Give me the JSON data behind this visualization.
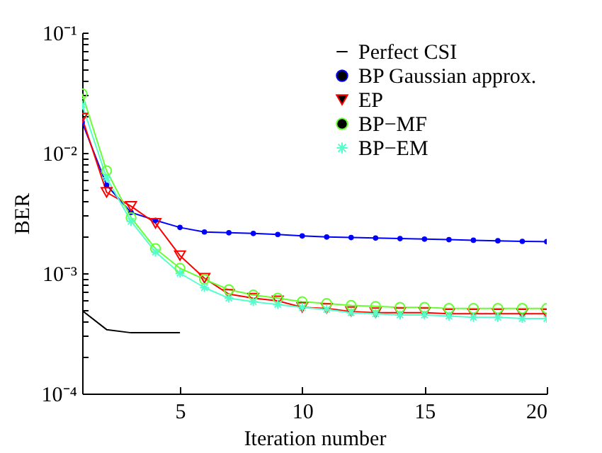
{
  "chart_data": {
    "type": "line",
    "xlabel": "Iteration number",
    "ylabel": "BER",
    "x": [
      1,
      2,
      3,
      4,
      5,
      6,
      7,
      8,
      9,
      10,
      11,
      12,
      13,
      14,
      15,
      16,
      17,
      18,
      19,
      20
    ],
    "series": [
      {
        "name": "Perfect CSI",
        "color": "#000000",
        "marker": "none",
        "x": [
          1,
          2,
          3,
          4,
          5
        ],
        "values": [
          0.00049,
          0.00034,
          0.00032,
          0.00032,
          0.00032
        ]
      },
      {
        "name": "BP Gaussian approx.",
        "color": "#0000ff",
        "marker": "circle",
        "values": [
          0.018,
          0.0054,
          0.0032,
          0.00275,
          0.0024,
          0.0022,
          0.00217,
          0.00214,
          0.0021,
          0.00204,
          0.002,
          0.00198,
          0.00196,
          0.00194,
          0.00192,
          0.0019,
          0.00188,
          0.00186,
          0.00184,
          0.00183
        ]
      },
      {
        "name": "EP",
        "color": "#ff0000",
        "marker": "triangle",
        "values": [
          0.0195,
          0.0047,
          0.0036,
          0.0026,
          0.0014,
          0.00091,
          0.00067,
          0.00062,
          0.00059,
          0.00052,
          0.00051,
          0.00048,
          0.00047,
          0.00047,
          0.00047,
          0.00046,
          0.00046,
          0.00046,
          0.00046,
          0.00046
        ]
      },
      {
        "name": "BP−MF",
        "color": "#66ff33",
        "marker": "circle",
        "values": [
          0.031,
          0.0071,
          0.0029,
          0.0016,
          0.0011,
          0.00089,
          0.00073,
          0.00066,
          0.00062,
          0.00058,
          0.00056,
          0.00054,
          0.00053,
          0.00052,
          0.00052,
          0.00051,
          0.00051,
          0.00051,
          0.00051,
          0.00051
        ]
      },
      {
        "name": "BP−EM",
        "color": "#55ffcc",
        "marker": "cross",
        "values": [
          0.025,
          0.0062,
          0.0027,
          0.0015,
          0.001,
          0.00076,
          0.00062,
          0.00058,
          0.00055,
          0.00052,
          0.0005,
          0.00047,
          0.00046,
          0.00045,
          0.00045,
          0.00044,
          0.00043,
          0.00043,
          0.00042,
          0.00042
        ]
      }
    ],
    "xlim": [
      1,
      20
    ],
    "xticks": [
      5,
      10,
      15,
      20
    ],
    "ylim": [
      0.0001,
      0.1
    ],
    "yticks": [
      {
        "value": 0.0001,
        "label": "10⁻⁴"
      },
      {
        "value": 0.0002,
        "label": null
      },
      {
        "value": 0.0003,
        "label": null
      },
      {
        "value": 0.0004,
        "label": null
      },
      {
        "value": 0.0005,
        "label": null
      },
      {
        "value": 0.0006,
        "label": null
      },
      {
        "value": 0.0007,
        "label": null
      },
      {
        "value": 0.0008,
        "label": null
      },
      {
        "value": 0.0009,
        "label": null
      },
      {
        "value": 0.001,
        "label": "10⁻³"
      },
      {
        "value": 0.002,
        "label": null
      },
      {
        "value": 0.003,
        "label": null
      },
      {
        "value": 0.004,
        "label": null
      },
      {
        "value": 0.005,
        "label": null
      },
      {
        "value": 0.006,
        "label": null
      },
      {
        "value": 0.007,
        "label": null
      },
      {
        "value": 0.008,
        "label": null
      },
      {
        "value": 0.009,
        "label": null
      },
      {
        "value": 0.01,
        "label": "10⁻²"
      },
      {
        "value": 0.02,
        "label": null
      },
      {
        "value": 0.03,
        "label": null
      },
      {
        "value": 0.04,
        "label": null
      },
      {
        "value": 0.05,
        "label": null
      },
      {
        "value": 0.06,
        "label": null
      },
      {
        "value": 0.07,
        "label": null
      },
      {
        "value": 0.08,
        "label": null
      },
      {
        "value": 0.09,
        "label": null
      },
      {
        "value": 0.1,
        "label": "10⁻¹"
      }
    ],
    "log": "y",
    "grid": false,
    "legend": "top right",
    "line_style": "solid"
  }
}
